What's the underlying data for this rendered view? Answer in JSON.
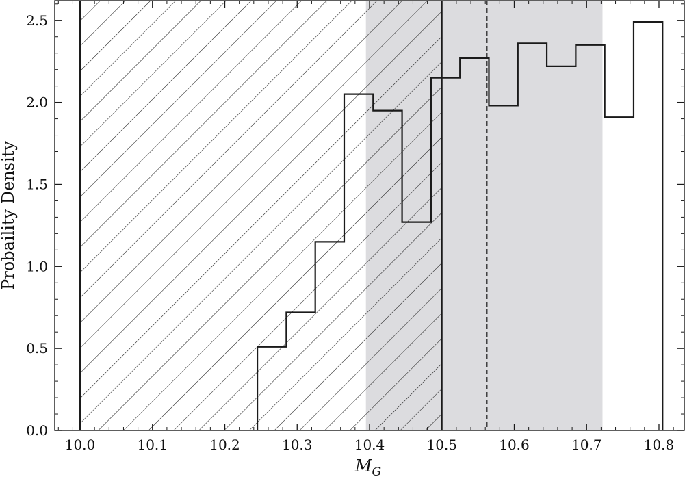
{
  "chart_data": {
    "type": "histogram",
    "xlabel": "M_G",
    "ylabel": "Probaility Density",
    "xlim": [
      9.965,
      10.835
    ],
    "ylim": [
      0,
      2.62
    ],
    "x_ticks": [
      10.0,
      10.1,
      10.2,
      10.3,
      10.4,
      10.5,
      10.6,
      10.7,
      10.8
    ],
    "x_tick_labels": [
      "10.0",
      "10.1",
      "10.2",
      "10.3",
      "10.4",
      "10.5",
      "10.6",
      "10.7",
      "10.8"
    ],
    "y_ticks": [
      0.0,
      0.5,
      1.0,
      1.5,
      2.0,
      2.5
    ],
    "y_tick_labels": [
      "0.0",
      "0.5",
      "1.0",
      "1.5",
      "2.0",
      "2.5"
    ],
    "grid": false,
    "histogram": {
      "bin_edges": [
        10.245,
        10.285,
        10.325,
        10.365,
        10.405,
        10.445,
        10.485,
        10.525,
        10.565,
        10.605,
        10.645,
        10.685,
        10.725,
        10.765,
        10.805
      ],
      "densities": [
        0.51,
        0.72,
        1.15,
        2.05,
        1.95,
        1.27,
        2.15,
        2.27,
        1.98,
        2.36,
        2.22,
        2.35,
        1.91,
        2.49
      ],
      "style": "step",
      "color": "#1a1a1a"
    },
    "hatched_region": {
      "x_range": [
        10.0,
        10.5
      ],
      "hatch": "diagonal",
      "edge_color": "#1a1a1a"
    },
    "shaded_region": {
      "x_range": [
        10.395,
        10.722
      ],
      "color": "#dcdcdf"
    },
    "vertical_line": {
      "x": 10.562,
      "style": "dashed",
      "color": "#1a1a1a"
    }
  }
}
